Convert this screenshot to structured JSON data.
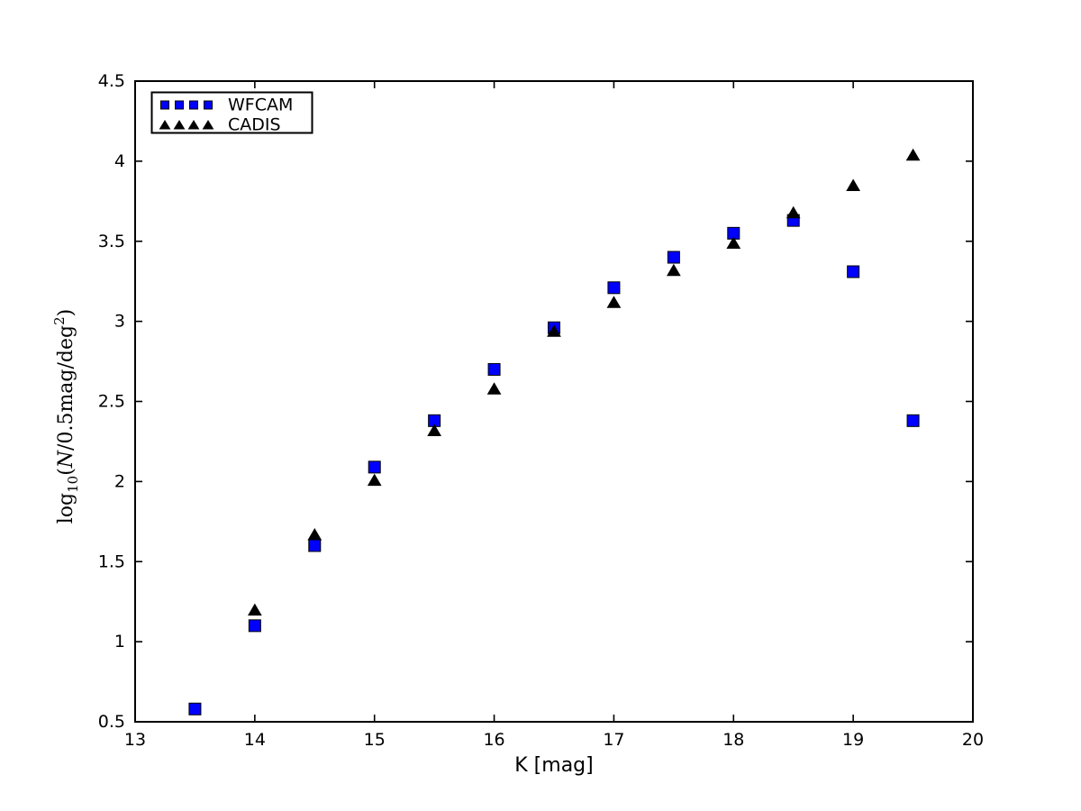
{
  "chart_data": {
    "type": "scatter",
    "title": "",
    "xlabel": "K [mag]",
    "ylabel": "log10(N/0.5mag/deg^2)",
    "ylabel_parts": {
      "func": "log",
      "sub": "10",
      "open": "(",
      "var": "N",
      "rest": "/0.5mag/deg",
      "sup": "2",
      "close": ")"
    },
    "xlim": [
      13,
      20
    ],
    "ylim": [
      0.5,
      4.5
    ],
    "xtick_values": [
      13,
      14,
      15,
      16,
      17,
      18,
      19,
      20
    ],
    "xtick_labels": [
      "13",
      "14",
      "15",
      "16",
      "17",
      "18",
      "19",
      "20"
    ],
    "ytick_values": [
      0.5,
      1,
      1.5,
      2,
      2.5,
      3,
      3.5,
      4,
      4.5
    ],
    "ytick_labels": [
      "0.5",
      "1",
      "1.5",
      "2",
      "2.5",
      "3",
      "3.5",
      "4",
      "4.5"
    ],
    "grid": false,
    "legend_position": "upper left",
    "series": [
      {
        "name": "WFCAM",
        "marker": "square",
        "color": "#0000ff",
        "edge_color": "#000000",
        "x": [
          13.5,
          14.0,
          14.5,
          15.0,
          15.5,
          16.0,
          16.5,
          17.0,
          17.5,
          18.0,
          18.5,
          19.0,
          19.5
        ],
        "y": [
          0.58,
          1.1,
          1.6,
          2.09,
          2.38,
          2.7,
          2.96,
          3.21,
          3.4,
          3.55,
          3.63,
          3.31,
          2.38
        ]
      },
      {
        "name": "CADIS",
        "marker": "triangle",
        "color": "#000000",
        "edge_color": "#000000",
        "x": [
          14.0,
          14.5,
          15.0,
          15.5,
          16.0,
          16.5,
          17.0,
          17.5,
          18.0,
          18.5,
          19.0,
          19.5
        ],
        "y": [
          1.2,
          1.67,
          2.01,
          2.32,
          2.58,
          2.94,
          3.12,
          3.32,
          3.49,
          3.68,
          3.85,
          4.04
        ]
      }
    ],
    "frame_color": "#000000",
    "background_color": "#ffffff"
  }
}
